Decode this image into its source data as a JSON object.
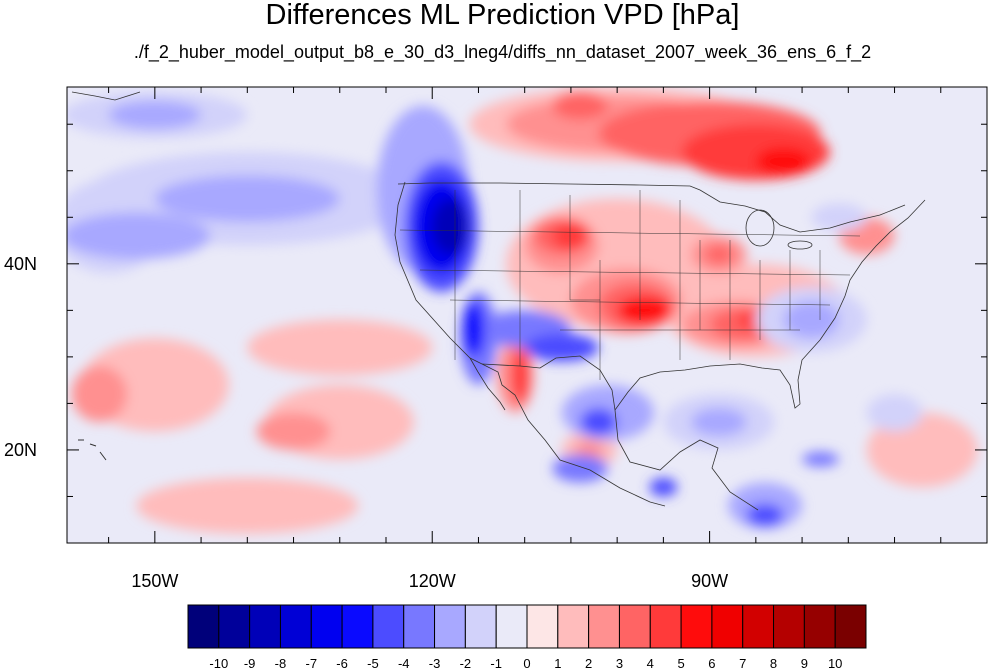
{
  "title": "Differences ML Prediction VPD [hPa]",
  "subtitle": "./f_2_huber_model_output_b8_e_30_d3_lneg4/diffs_nn_dataset_2007_week_36_ens_6_f_2",
  "map": {
    "extent": {
      "lon_min": -159.5,
      "lon_max": -60,
      "lat_min": 10,
      "lat_max": 59
    },
    "lat_ticks": [
      {
        "value": 40,
        "label": "40N"
      },
      {
        "value": 20,
        "label": "20N"
      }
    ],
    "lon_ticks": [
      {
        "value": -150,
        "label": "150W"
      },
      {
        "value": -120,
        "label": "120W"
      },
      {
        "value": -90,
        "label": "90W"
      }
    ],
    "background_level": -1,
    "regions": [
      {
        "level": -2,
        "lon": -155,
        "lat": 44,
        "rx": 6,
        "ry": 5
      },
      {
        "level": -2,
        "lon": -140,
        "lat": 47,
        "rx": 18,
        "ry": 5
      },
      {
        "level": -3,
        "lon": -152,
        "lat": 43,
        "rx": 8,
        "ry": 2.5
      },
      {
        "level": -3,
        "lon": -140,
        "lat": 47,
        "rx": 10,
        "ry": 2.5
      },
      {
        "level": -2,
        "lon": -150,
        "lat": 56,
        "rx": 10,
        "ry": 2.5
      },
      {
        "level": -3,
        "lon": -150,
        "lat": 56,
        "rx": 5,
        "ry": 1.5
      },
      {
        "level": 1,
        "lon": -150,
        "lat": 27,
        "rx": 8,
        "ry": 5
      },
      {
        "level": 1,
        "lon": -130,
        "lat": 23,
        "rx": 8,
        "ry": 4
      },
      {
        "level": 1,
        "lon": -130,
        "lat": 31,
        "rx": 10,
        "ry": 3
      },
      {
        "level": 2,
        "lon": -156,
        "lat": 26,
        "rx": 3,
        "ry": 3
      },
      {
        "level": 2,
        "lon": -135,
        "lat": 22,
        "rx": 4,
        "ry": 2
      },
      {
        "level": 1,
        "lon": -140,
        "lat": 14,
        "rx": 12,
        "ry": 3
      },
      {
        "level": 1,
        "lon": -100,
        "lat": 55,
        "rx": 16,
        "ry": 4
      },
      {
        "level": 2,
        "lon": -100,
        "lat": 55,
        "rx": 12,
        "ry": 3
      },
      {
        "level": 3,
        "lon": -90,
        "lat": 54,
        "rx": 12,
        "ry": 3.5
      },
      {
        "level": 4,
        "lon": -85,
        "lat": 52,
        "rx": 8,
        "ry": 3
      },
      {
        "level": 5,
        "lon": -82,
        "lat": 51,
        "rx": 3,
        "ry": 1.5
      },
      {
        "level": 3,
        "lon": -104,
        "lat": 57,
        "rx": 3,
        "ry": 1.5
      },
      {
        "level": 1,
        "lon": -100,
        "lat": 40,
        "rx": 12,
        "ry": 7
      },
      {
        "level": 1,
        "lon": -85,
        "lat": 35,
        "rx": 10,
        "ry": 5
      },
      {
        "level": 2,
        "lon": -106,
        "lat": 42,
        "rx": 4,
        "ry": 3
      },
      {
        "level": 3,
        "lon": -106,
        "lat": 43,
        "rx": 3,
        "ry": 2
      },
      {
        "level": 4,
        "lon": -105,
        "lat": 43,
        "rx": 2,
        "ry": 1.5
      },
      {
        "level": 2,
        "lon": -99,
        "lat": 36,
        "rx": 6,
        "ry": 3.5
      },
      {
        "level": 3,
        "lon": -98,
        "lat": 35.5,
        "rx": 4,
        "ry": 2.5
      },
      {
        "level": 5,
        "lon": -97,
        "lat": 35,
        "rx": 3,
        "ry": 1.5
      },
      {
        "level": 2,
        "lon": -87,
        "lat": 33.5,
        "rx": 6,
        "ry": 2.5
      },
      {
        "level": 3,
        "lon": -86,
        "lat": 33.5,
        "rx": 4,
        "ry": 1.8
      },
      {
        "level": 4,
        "lon": -85,
        "lat": 34,
        "rx": 2,
        "ry": 1
      },
      {
        "level": 2,
        "lon": -89,
        "lat": 41,
        "rx": 3,
        "ry": 2
      },
      {
        "level": 3,
        "lon": -89,
        "lat": 41,
        "rx": 1.5,
        "ry": 1
      },
      {
        "level": 2,
        "lon": -73,
        "lat": 43,
        "rx": 3,
        "ry": 2
      },
      {
        "level": 1,
        "lon": -67,
        "lat": 20,
        "rx": 6,
        "ry": 4
      },
      {
        "level": 2,
        "lon": -111,
        "lat": 28,
        "rx": 2,
        "ry": 4
      },
      {
        "level": 4,
        "lon": -110.5,
        "lat": 28,
        "rx": 1,
        "ry": 3
      },
      {
        "level": 1,
        "lon": -103,
        "lat": 20,
        "rx": 3,
        "ry": 2
      },
      {
        "level": 2,
        "lon": -103,
        "lat": 20,
        "rx": 1.5,
        "ry": 1
      },
      {
        "level": -2,
        "lon": -79,
        "lat": 34,
        "rx": 6,
        "ry": 3.5
      },
      {
        "level": -3,
        "lon": -79,
        "lat": 34,
        "rx": 3,
        "ry": 2
      },
      {
        "level": -2,
        "lon": -89,
        "lat": 23,
        "rx": 6,
        "ry": 3
      },
      {
        "level": -3,
        "lon": -89,
        "lat": 23,
        "rx": 3,
        "ry": 1.5
      },
      {
        "level": -2,
        "lon": -70,
        "lat": 24,
        "rx": 3,
        "ry": 2
      },
      {
        "level": -4,
        "lon": -110,
        "lat": 33,
        "rx": 5,
        "ry": 2
      },
      {
        "level": -5,
        "lon": -106,
        "lat": 31,
        "rx": 4,
        "ry": 1.5
      },
      {
        "level": -3,
        "lon": -101,
        "lat": 24,
        "rx": 5,
        "ry": 3
      },
      {
        "level": -5,
        "lon": -102,
        "lat": 23,
        "rx": 2,
        "ry": 1.5
      },
      {
        "level": -4,
        "lon": -104,
        "lat": 18,
        "rx": 3,
        "ry": 1.5
      },
      {
        "level": -3,
        "lon": -84,
        "lat": 14,
        "rx": 4,
        "ry": 2.5
      },
      {
        "level": -5,
        "lon": -84,
        "lat": 13,
        "rx": 2,
        "ry": 1.2
      },
      {
        "level": -5,
        "lon": -95,
        "lat": 16,
        "rx": 1.5,
        "ry": 1
      },
      {
        "level": -2,
        "lon": -76,
        "lat": 45,
        "rx": 3,
        "ry": 1.5
      },
      {
        "level": -4,
        "lon": -78,
        "lat": 19,
        "rx": 2,
        "ry": 0.8
      },
      {
        "level": -3,
        "lon": -121,
        "lat": 48,
        "rx": 5,
        "ry": 9
      },
      {
        "level": -5,
        "lon": -119,
        "lat": 44,
        "rx": 4,
        "ry": 7
      },
      {
        "level": -7,
        "lon": -119,
        "lat": 44,
        "rx": 3,
        "ry": 5
      },
      {
        "level": -9,
        "lon": -118,
        "lat": 44,
        "rx": 2,
        "ry": 3
      },
      {
        "level": -4,
        "lon": -115,
        "lat": 32,
        "rx": 2,
        "ry": 5
      },
      {
        "level": -6,
        "lon": -115.5,
        "lat": 33,
        "rx": 1.2,
        "ry": 3
      }
    ]
  },
  "colorbar": {
    "levels": [
      -10,
      -9,
      -8,
      -7,
      -6,
      -5,
      -4,
      -3,
      -2,
      -1,
      0,
      1,
      2,
      3,
      4,
      5,
      6,
      7,
      8,
      9,
      10
    ],
    "labels": [
      "-10",
      "-9",
      "-8",
      "-7",
      "-6",
      "-5",
      "-4",
      "-3",
      "-2",
      "-1",
      "0",
      "1",
      "2",
      "3",
      "4",
      "5",
      "6",
      "7",
      "8",
      "9",
      "10"
    ],
    "colors": [
      "#00007a",
      "#00009a",
      "#0000b8",
      "#0000d6",
      "#0000f0",
      "#0a0aff",
      "#4c4cff",
      "#7878ff",
      "#a8a8ff",
      "#d2d2fa",
      "#eaeaf8",
      "#fde6e6",
      "#ffbcbc",
      "#ff9090",
      "#ff6464",
      "#ff3a3a",
      "#ff0c0c",
      "#f00000",
      "#d20000",
      "#b40000",
      "#960000",
      "#7a0000"
    ]
  }
}
